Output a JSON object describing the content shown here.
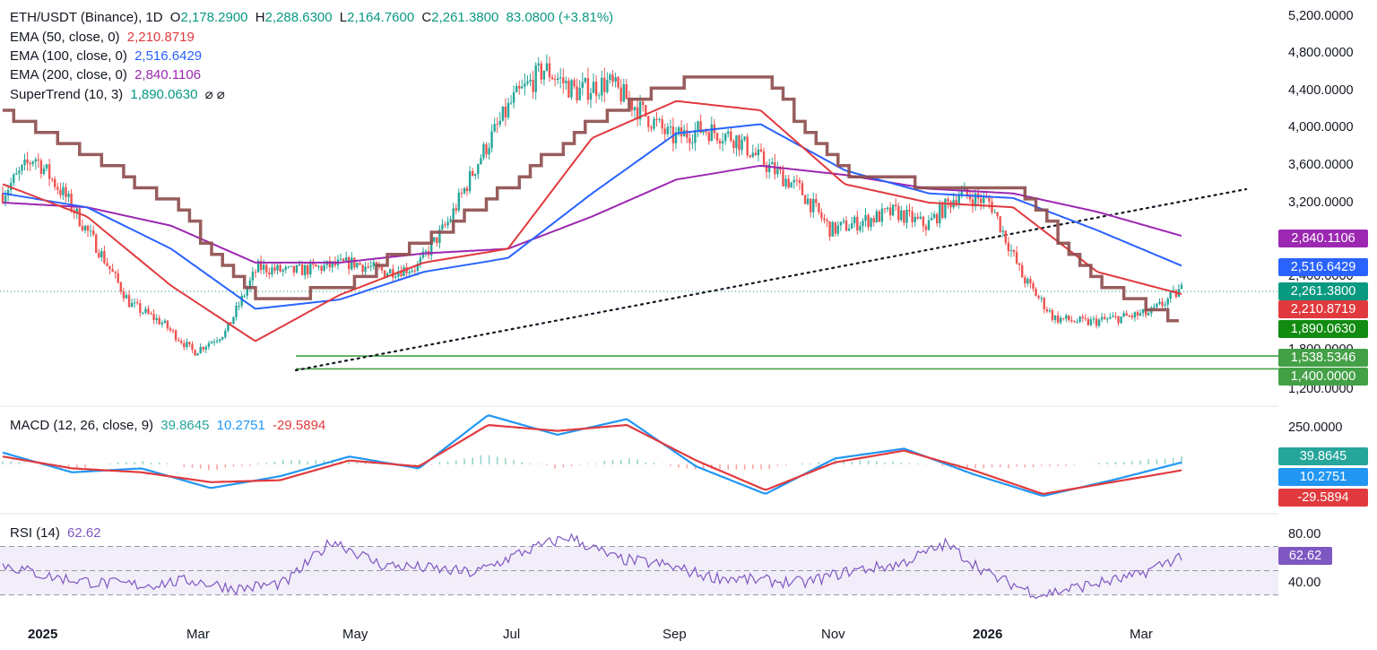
{
  "header": {
    "symbol": "ETH/USDT (Binance), 1D",
    "o_label": "O",
    "o": "2,178.2900",
    "h_label": "H",
    "h": "2,288.6300",
    "l_label": "L",
    "l": "2,164.7600",
    "c_label": "C",
    "c": "2,261.3800",
    "chg": "83.0800 (+3.81%)"
  },
  "indicators": {
    "ema50": {
      "label": "EMA (50, close, 0)",
      "value": "2,210.8719",
      "color": "#e03a3e"
    },
    "ema100": {
      "label": "EMA (100, close, 0)",
      "value": "2,516.6429",
      "color": "#2962ff"
    },
    "ema200": {
      "label": "EMA (200, close, 0)",
      "value": "2,840.1106",
      "color": "#9c27b0"
    },
    "supertrend": {
      "label": "SuperTrend (10, 3)",
      "value": "1,890.0630",
      "extra": "⌀ ⌀",
      "color_up": "#4caf50",
      "color_down": "#8d4b4b"
    },
    "macd": {
      "label": "MACD (12, 26, close, 9)",
      "hist": "39.8645",
      "macd": "10.2751",
      "signal": "-29.5894"
    },
    "rsi": {
      "label": "RSI (14)",
      "value": "62.62"
    }
  },
  "price_axis": [
    "5,200.0000",
    "4,800.0000",
    "4,400.0000",
    "4,000.0000",
    "3,600.0000",
    "3,200.0000",
    "2,400.0000",
    "1,800.0000",
    "1,200.0000"
  ],
  "macd_axis": [
    "250.0000"
  ],
  "rsi_axis": [
    "80.00",
    "40.00"
  ],
  "time_axis": [
    "2025",
    "Mar",
    "May",
    "Jul",
    "Sep",
    "Nov",
    "2026",
    "Mar"
  ],
  "price_tags": {
    "ema200": "2,840.1106",
    "ema100": "2,516.6429",
    "last": "2,261.3800",
    "ema50": "2,210.8719",
    "supertrend": "1,890.0630",
    "level1": "1,538.5346",
    "level2": "1,400.0000"
  },
  "macd_tags": {
    "hist": "39.8645",
    "macd": "10.2751",
    "signal": "-29.5894"
  },
  "rsi_tag": "62.62",
  "colors": {
    "up": "#26a69a",
    "down": "#ef5350",
    "ema50": "#e03a3e",
    "ema100": "#2962ff",
    "ema200": "#9c27b0",
    "st_up": "#4caf50",
    "st_down": "#8d4b4b",
    "macd": "#2196f3",
    "signal": "#e03a3e",
    "rsi": "#7e57c2",
    "last": "#089981"
  },
  "chart_data": {
    "type": "line",
    "title": "ETH/USDT (Binance), 1D",
    "x": [
      "2025-01",
      "2025-02",
      "2025-03",
      "2025-04",
      "2025-05",
      "2025-06",
      "2025-07",
      "2025-08",
      "2025-09",
      "2025-10",
      "2025-11",
      "2025-12",
      "2026-01",
      "2026-02",
      "2026-03"
    ],
    "series": [
      {
        "name": "EMA (50, close, 0)",
        "values": [
          3400,
          3050,
          2300,
          1700,
          2200,
          2550,
          2700,
          3900,
          4300,
          4200,
          3400,
          3200,
          3150,
          2450,
          2210
        ]
      },
      {
        "name": "EMA (100, close, 0)",
        "values": [
          3300,
          3150,
          2700,
          2050,
          2150,
          2450,
          2600,
          3300,
          3950,
          4050,
          3550,
          3300,
          3250,
          2900,
          2517
        ]
      },
      {
        "name": "EMA (200, close, 0)",
        "values": [
          3200,
          3150,
          2950,
          2550,
          2550,
          2650,
          2700,
          3050,
          3450,
          3600,
          3500,
          3350,
          3300,
          3100,
          2840
        ]
      },
      {
        "name": "SuperTrend (10, 3)",
        "values": [
          4200,
          3700,
          3200,
          2100,
          2300,
          2800,
          3400,
          4100,
          4500,
          4550,
          3500,
          3400,
          3400,
          2300,
          1890
        ]
      }
    ],
    "ylim": [
      1200,
      5200
    ],
    "horizontal_levels": [
      1538.5346,
      1400.0
    ],
    "rsi": 62.62,
    "rsi_levels": [
      70,
      50,
      30
    ],
    "macd": {
      "macd": 10.2751,
      "signal": -29.5894,
      "histogram": 39.8645
    },
    "grid": false
  }
}
